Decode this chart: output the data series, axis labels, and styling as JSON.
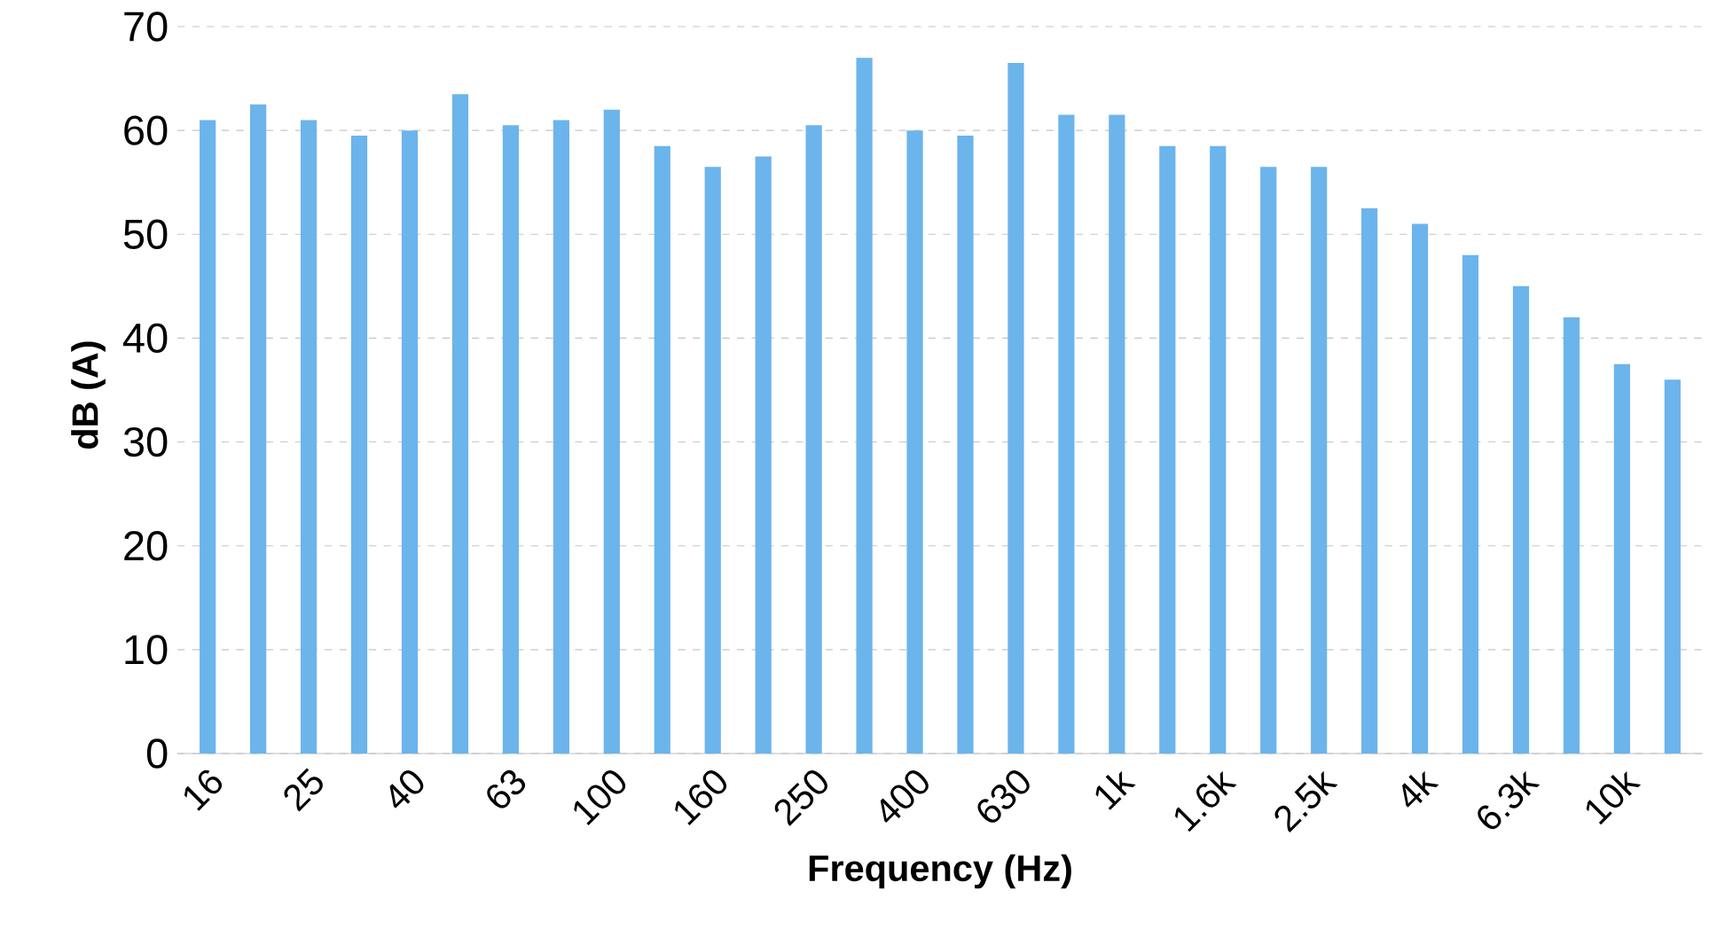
{
  "chart_data": {
    "type": "bar",
    "xlabel": "Frequency (Hz)",
    "ylabel": "dB (A)",
    "categories": [
      "16",
      null,
      "25",
      null,
      "40",
      null,
      "63",
      null,
      "100",
      null,
      "160",
      null,
      "250",
      null,
      "400",
      null,
      "630",
      null,
      "1k",
      null,
      "1.6k",
      null,
      "2.5k",
      null,
      "4k",
      null,
      "6.3k",
      null,
      "10k",
      null
    ],
    "values": [
      61,
      62.5,
      61,
      59.5,
      60,
      63.5,
      60.5,
      61,
      62,
      58.5,
      56.5,
      57.5,
      60.5,
      67,
      60,
      59.5,
      66.5,
      61.5,
      61.5,
      58.5,
      58.5,
      56.5,
      56.5,
      52.5,
      51,
      48,
      45,
      42,
      37.5,
      36
    ],
    "color": "#6cb4ec",
    "ylim": [
      0,
      70
    ],
    "yticks": [
      0,
      10,
      20,
      30,
      40,
      50,
      60,
      70
    ],
    "grid": "y"
  }
}
